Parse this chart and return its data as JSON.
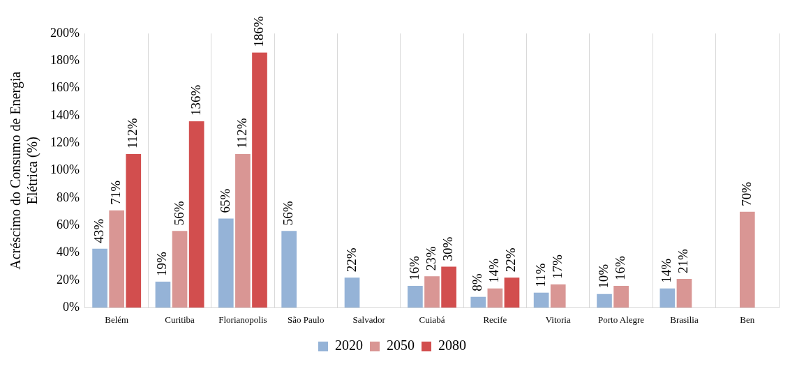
{
  "chart_data": {
    "type": "bar",
    "ylabel": "Acréscimo do Consumo de Energia Elétrica (%)",
    "categories": [
      "Belém",
      "Curitiba",
      "Florianopolis",
      "São Paulo",
      "Salvador",
      "Cuiabá",
      "Recife",
      "Vitoria",
      "Porto Alegre",
      "Brasilia",
      "Ben"
    ],
    "series": [
      {
        "name": "2020",
        "color": "#95b3d7",
        "values": [
          43,
          19,
          65,
          56,
          22,
          16,
          8,
          11,
          10,
          14,
          null
        ],
        "value_labels": [
          "43%",
          "19%",
          "65%",
          "56%",
          "22%",
          "16%",
          "8%",
          "11%",
          "10%",
          "14%",
          null
        ]
      },
      {
        "name": "2050",
        "color": "#d99694",
        "values": [
          71,
          56,
          112,
          null,
          null,
          23,
          14,
          17,
          16,
          21,
          70
        ],
        "value_labels": [
          "71%",
          "56%",
          "112%",
          null,
          null,
          "23%",
          "14%",
          "17%",
          "16%",
          "21%",
          "70%"
        ]
      },
      {
        "name": "2080",
        "color": "#d24e4e",
        "values": [
          112,
          136,
          186,
          null,
          null,
          30,
          22,
          null,
          null,
          null,
          null
        ],
        "value_labels": [
          "112%",
          "136%",
          "186%",
          null,
          null,
          "30%",
          "22%",
          null,
          null,
          null,
          null
        ]
      }
    ],
    "ylim": [
      0,
      200
    ],
    "yticks": [
      {
        "value": 0,
        "label": "0%"
      },
      {
        "value": 20,
        "label": "20%"
      },
      {
        "value": 40,
        "label": "40%"
      },
      {
        "value": 60,
        "label": "60%"
      },
      {
        "value": 80,
        "label": "80%"
      },
      {
        "value": 100,
        "label": "100%"
      },
      {
        "value": 120,
        "label": "120%"
      },
      {
        "value": 140,
        "label": "140%"
      },
      {
        "value": 160,
        "label": "160%"
      },
      {
        "value": 180,
        "label": "180%"
      },
      {
        "value": 200,
        "label": "200%"
      }
    ],
    "grid": "x",
    "legend": "bottom"
  }
}
